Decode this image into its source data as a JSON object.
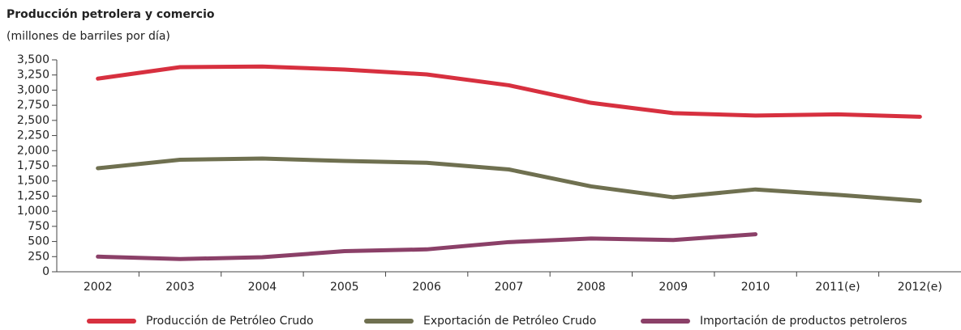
{
  "chart_data": {
    "type": "line",
    "title": "Producción petrolera y comercio",
    "subtitle": "(millones de barriles por día)",
    "categories": [
      "2002",
      "2003",
      "2004",
      "2005",
      "2006",
      "2007",
      "2008",
      "2009",
      "2010",
      "2011(e)",
      "2012(e)"
    ],
    "series": [
      {
        "name": "Producción de Petróleo Crudo",
        "color": "#d7303f",
        "values": [
          3190,
          3380,
          3390,
          3340,
          3260,
          3080,
          2790,
          2620,
          2580,
          2600,
          2560
        ]
      },
      {
        "name": "Exportación de Petróleo Crudo",
        "color": "#6f7050",
        "values": [
          1710,
          1850,
          1870,
          1830,
          1800,
          1690,
          1410,
          1230,
          1360,
          1270,
          1170
        ]
      },
      {
        "name": "Importación de productos petroleros",
        "color": "#8b4068",
        "values": [
          250,
          210,
          240,
          340,
          370,
          490,
          550,
          525,
          620,
          null,
          null
        ]
      }
    ],
    "ylim": [
      0,
      3500
    ],
    "yticks": [
      0,
      250,
      500,
      750,
      {
        "value": 1000,
        "label": "1,000"
      },
      {
        "value": 1250,
        "label": "1,250"
      },
      {
        "value": 1500,
        "label": "1,500"
      },
      {
        "value": 1750,
        "label": "1,750"
      },
      {
        "value": 2000,
        "label": "2,000"
      },
      {
        "value": 2250,
        "label": "2,250"
      },
      {
        "value": 2500,
        "label": "2,500"
      },
      {
        "value": 2750,
        "label": "2,750"
      },
      {
        "value": 3000,
        "label": "3,000"
      },
      {
        "value": 3250,
        "label": "3,250"
      },
      {
        "value": 3500,
        "label": "3,500"
      }
    ],
    "grid": false,
    "legend": "bottom"
  }
}
